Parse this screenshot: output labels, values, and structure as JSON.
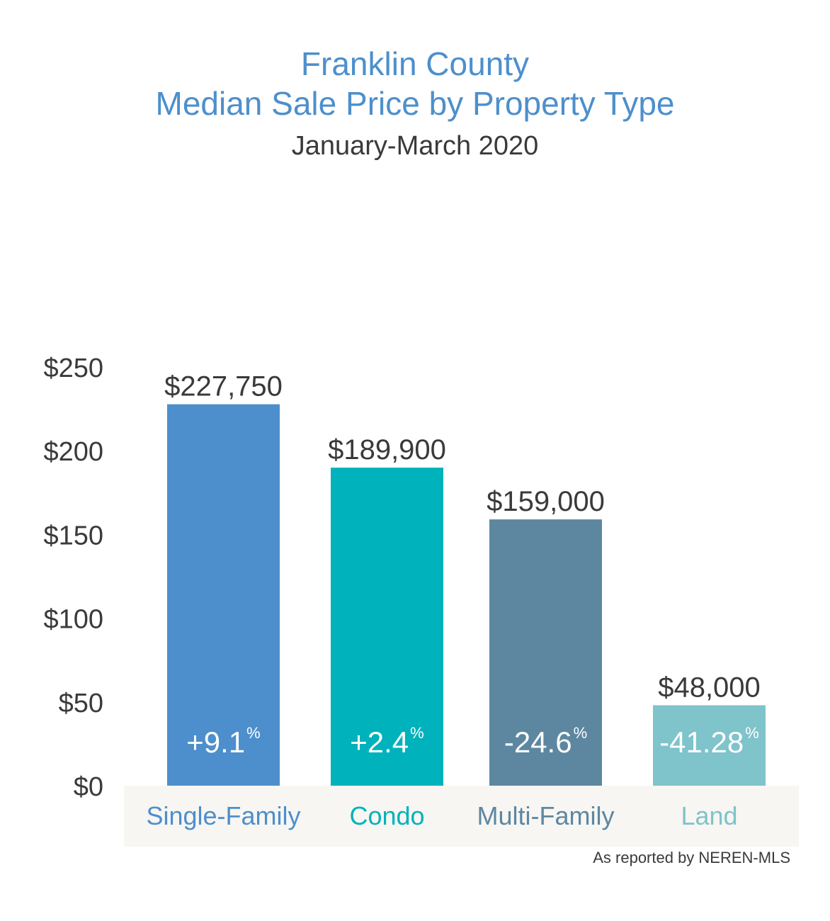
{
  "header": {
    "title_line1": "Franklin County",
    "title_line2": "Median Sale Price by Property Type",
    "subtitle": "January-March 2020"
  },
  "footer": {
    "source": "As reported by NEREN-MLS"
  },
  "chart_data": {
    "type": "bar",
    "title": "Franklin County Median Sale Price by Property Type",
    "subtitle": "January-March 2020",
    "xlabel": "",
    "ylabel": "",
    "ylim": [
      0,
      250
    ],
    "y_ticks": [
      0,
      50,
      100,
      150,
      200,
      250
    ],
    "y_tick_labels": [
      "$0",
      "$50",
      "$100",
      "$150",
      "$200",
      "$250"
    ],
    "grid": false,
    "categories": [
      "Single-Family",
      "Condo",
      "Multi-Family",
      "Land"
    ],
    "values": [
      227.75,
      189.9,
      159.0,
      48.0
    ],
    "value_labels": [
      "$227,750",
      "$189,900",
      "$159,000",
      "$48,000"
    ],
    "change_labels": [
      "+9.1",
      "+2.4",
      "-24.6",
      "-41.28"
    ],
    "change_unit": "%",
    "colors": [
      "#4d8fcc",
      "#00b2bb",
      "#5d87a1",
      "#7fc3cb"
    ],
    "category_band_color": "#f7f6f2",
    "value_label_color": "#3a3a3a",
    "change_label_color": "#ffffff"
  }
}
